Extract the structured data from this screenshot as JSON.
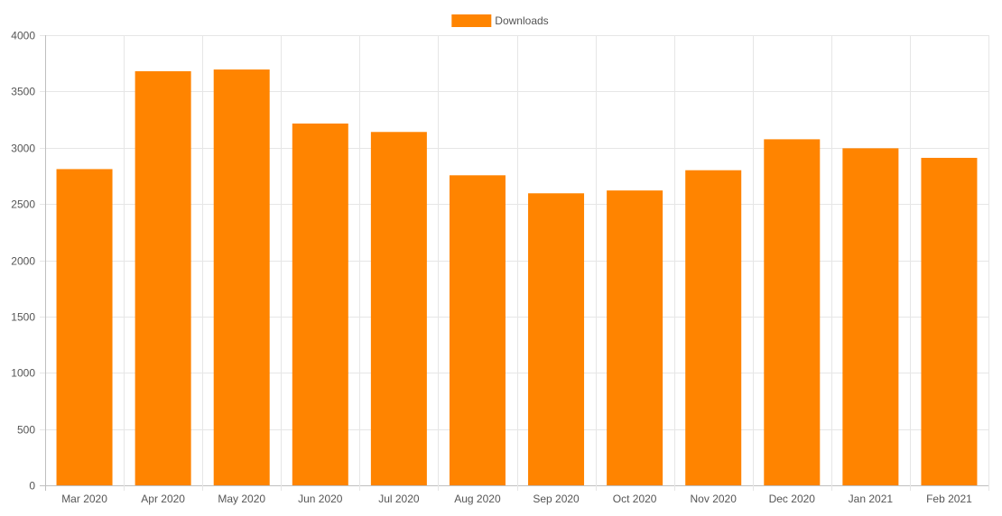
{
  "chart_data": {
    "type": "bar",
    "legend": {
      "position": "top",
      "entries": [
        "Downloads"
      ]
    },
    "categories": [
      "Mar 2020",
      "Apr 2020",
      "May 2020",
      "Jun 2020",
      "Jul 2020",
      "Aug 2020",
      "Sep 2020",
      "Oct 2020",
      "Nov 2020",
      "Dec 2020",
      "Jan 2021",
      "Feb 2021"
    ],
    "series": [
      {
        "name": "Downloads",
        "color": "#ff8400",
        "values": [
          2810,
          3680,
          3695,
          3215,
          3140,
          2755,
          2595,
          2620,
          2800,
          3075,
          2995,
          2910
        ]
      }
    ],
    "ylim": [
      0,
      4000
    ],
    "yticks": [
      0,
      500,
      1000,
      1500,
      2000,
      2500,
      3000,
      3500,
      4000
    ],
    "grid": true,
    "colors": {
      "grid": "#e6e6e6",
      "axis": "#bfbfbf",
      "text": "#555555"
    }
  }
}
